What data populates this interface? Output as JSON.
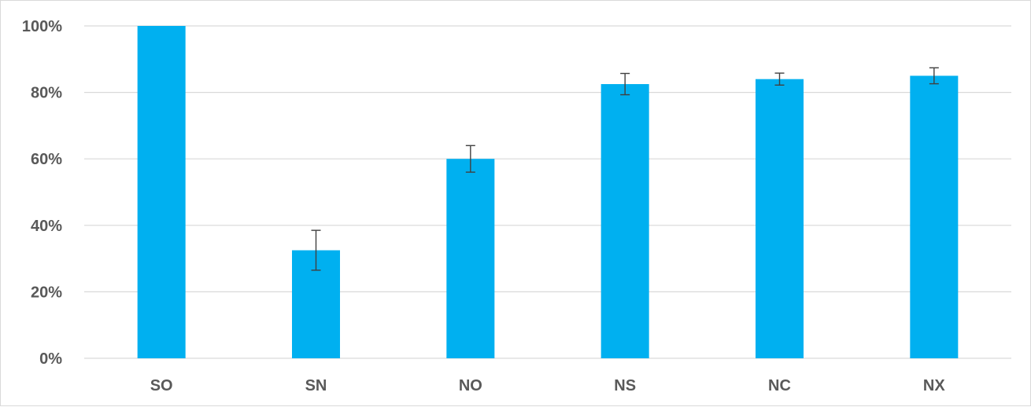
{
  "chart_data": {
    "type": "bar",
    "title": "",
    "xlabel": "",
    "ylabel": "",
    "categories": [
      "SO",
      "SN",
      "NO",
      "NS",
      "NC",
      "NX"
    ],
    "values": [
      100,
      32.5,
      60,
      82.5,
      84,
      85
    ],
    "error": [
      0,
      6,
      4,
      3.2,
      1.8,
      2.4
    ],
    "ylim": [
      0,
      100
    ],
    "yticks": [
      0,
      20,
      40,
      60,
      80,
      100
    ],
    "ytick_labels": [
      "0%",
      "20%",
      "40%",
      "60%",
      "80%",
      "100%"
    ],
    "grid": true,
    "legend": "none",
    "colors": {
      "bar": "#00b0f0",
      "grid": "#d9d9d9",
      "error_bar": "#404040",
      "axis": "#d9d9d9"
    }
  }
}
